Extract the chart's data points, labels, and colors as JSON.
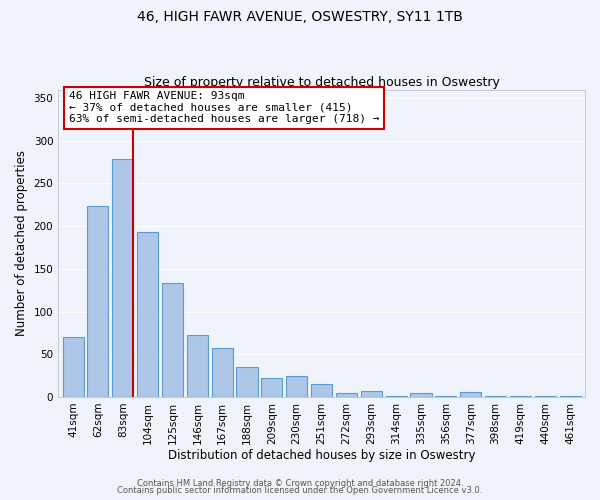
{
  "title": "46, HIGH FAWR AVENUE, OSWESTRY, SY11 1TB",
  "subtitle": "Size of property relative to detached houses in Oswestry",
  "xlabel": "Distribution of detached houses by size in Oswestry",
  "ylabel": "Number of detached properties",
  "bar_labels": [
    "41sqm",
    "62sqm",
    "83sqm",
    "104sqm",
    "125sqm",
    "146sqm",
    "167sqm",
    "188sqm",
    "209sqm",
    "230sqm",
    "251sqm",
    "272sqm",
    "293sqm",
    "314sqm",
    "335sqm",
    "356sqm",
    "377sqm",
    "398sqm",
    "419sqm",
    "440sqm",
    "461sqm"
  ],
  "bar_values": [
    70,
    224,
    279,
    193,
    134,
    72,
    57,
    35,
    22,
    25,
    15,
    5,
    7,
    1,
    5,
    1,
    6,
    1,
    1,
    1,
    1
  ],
  "bar_color": "#aec6e8",
  "bar_edge_color": "#5b9bd5",
  "ylim": [
    0,
    360
  ],
  "yticks": [
    0,
    50,
    100,
    150,
    200,
    250,
    300,
    350
  ],
  "vline_x_index": 2,
  "vline_color": "#cc0000",
  "annotation_title": "46 HIGH FAWR AVENUE: 93sqm",
  "annotation_line1": "← 37% of detached houses are smaller (415)",
  "annotation_line2": "63% of semi-detached houses are larger (718) →",
  "annotation_box_color": "#ffffff",
  "annotation_box_edge_color": "#cc0000",
  "footer1": "Contains HM Land Registry data © Crown copyright and database right 2024.",
  "footer2": "Contains public sector information licensed under the Open Government Licence v3.0.",
  "background_color": "#f0f4fa",
  "grid_color": "#ffffff",
  "title_fontsize": 10,
  "subtitle_fontsize": 9,
  "axis_label_fontsize": 8.5,
  "tick_fontsize": 7.5,
  "annotation_fontsize": 8,
  "footer_fontsize": 6
}
